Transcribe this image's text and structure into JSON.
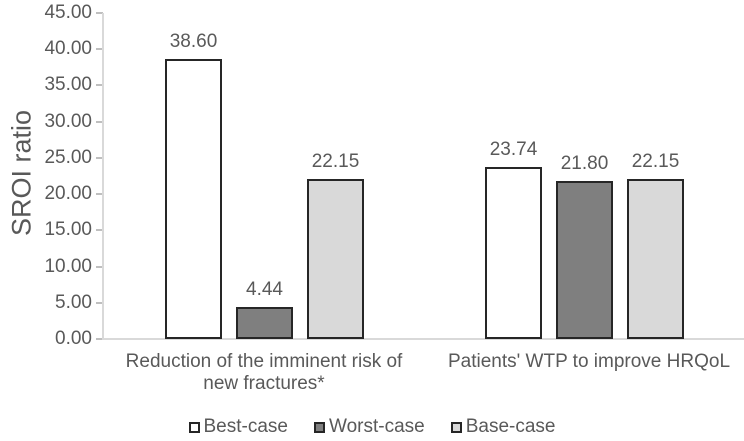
{
  "chart_data": {
    "type": "bar",
    "title": "",
    "xlabel": "",
    "ylabel": "SROI ratio",
    "ylim": [
      0,
      45
    ],
    "ytick_step": 5,
    "ytick_labels": [
      "0.00",
      "5.00",
      "10.00",
      "15.00",
      "20.00",
      "25.00",
      "30.00",
      "35.00",
      "40.00",
      "45.00"
    ],
    "grid": false,
    "legend_position": "bottom",
    "categories": [
      "Reduction of the imminent risk of new fractures*",
      "Patients' WTP to improve HRQoL"
    ],
    "category_lines": [
      [
        "Reduction of the imminent risk of",
        "new fractures*"
      ],
      [
        "Patients' WTP to improve HRQoL"
      ]
    ],
    "series": [
      {
        "name": "Best-case",
        "values": [
          38.6,
          23.74
        ],
        "labels": [
          "38.60",
          "23.74"
        ],
        "fill": "#FFFFFF"
      },
      {
        "name": "Worst-case",
        "values": [
          4.44,
          21.8
        ],
        "labels": [
          "4.44",
          "21.80"
        ],
        "fill": "#7F7F7F"
      },
      {
        "name": "Base-case",
        "values": [
          22.15,
          22.15
        ],
        "labels": [
          "22.15",
          "22.15"
        ],
        "fill": "#D9D9D9"
      }
    ],
    "colors": {
      "bar_border": "#262626",
      "axis_line": "#D9D9D9",
      "tick_mark": "#BFBFBF",
      "text": "#595959",
      "background": "#FFFFFF"
    }
  }
}
